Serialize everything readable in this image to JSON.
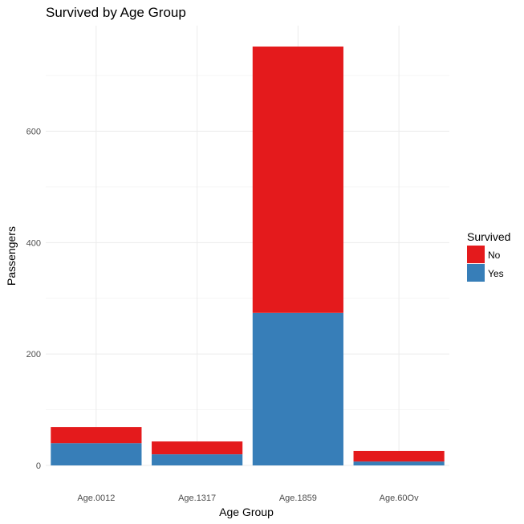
{
  "chart_data": {
    "type": "bar",
    "stacked": true,
    "title": "Survived by Age Group",
    "xlabel": "Age Group",
    "ylabel": "Passengers",
    "categories": [
      "Age.0012",
      "Age.1317",
      "Age.1859",
      "Age.60Ov"
    ],
    "series": [
      {
        "name": "Yes",
        "color": "#377eb8",
        "values": [
          40,
          20,
          274,
          7
        ]
      },
      {
        "name": "No",
        "color": "#e41a1c",
        "values": [
          29,
          23,
          478,
          19
        ]
      }
    ],
    "ylim": [
      0,
      752
    ],
    "yticks": [
      0,
      200,
      400,
      600
    ],
    "grid": true,
    "legend": {
      "title": "Survived",
      "position": "right",
      "entries": [
        {
          "label": "No",
          "color": "#e41a1c"
        },
        {
          "label": "Yes",
          "color": "#377eb8"
        }
      ]
    }
  }
}
